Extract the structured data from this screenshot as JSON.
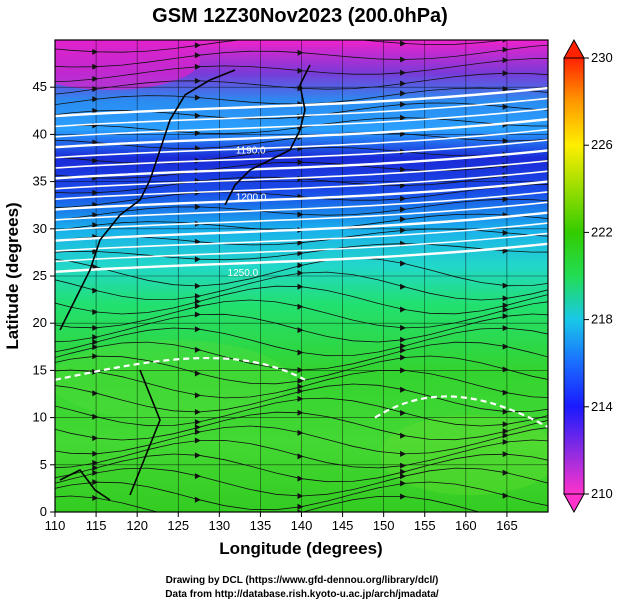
{
  "title": "GSM 12Z30Nov2023 (200.0hPa)",
  "map": {
    "xlabel": "Longitude (degrees)",
    "ylabel": "Latitude  (degrees)",
    "xlim": [
      110,
      170
    ],
    "ylim": [
      0,
      50
    ],
    "x_ticks": [
      "110",
      "115",
      "120",
      "125",
      "130",
      "135",
      "140",
      "145",
      "150",
      "155",
      "160",
      "165"
    ],
    "y_ticks": [
      "0",
      "5",
      "10",
      "15",
      "20",
      "25",
      "30",
      "35",
      "40",
      "45"
    ],
    "grid": true,
    "field": "temperature shaded, streamlines, wind speed contours (white)",
    "contour_labels": [
      "1190.0",
      "1200.0",
      "1250.0"
    ]
  },
  "colorbar": {
    "ticks": [
      "210",
      "214",
      "218",
      "222",
      "226",
      "230"
    ],
    "range": [
      210,
      230
    ],
    "colors": [
      "#ff33cc",
      "#8a2be2",
      "#1a1aff",
      "#1a8cff",
      "#19e0e0",
      "#22dd55",
      "#33cc00",
      "#99dd00",
      "#ffee00",
      "#ff9900",
      "#ff2200"
    ]
  },
  "credits": [
    "Drawing by DCL (https://www.gfd-dennou.org/library/dcl/)",
    "Data from http://database.rish.kyoto-u.ac.jp/arch/jmadata/"
  ]
}
